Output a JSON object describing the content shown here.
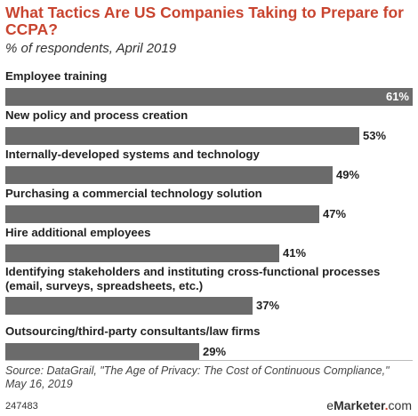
{
  "header": {
    "title": "What Tactics Are US Companies Taking to Prepare for CCPA?",
    "subtitle": "% of respondents, April 2019"
  },
  "chart_data": {
    "type": "bar",
    "orientation": "horizontal",
    "categories": [
      "Employee training",
      "New policy and process creation",
      "Internally-developed systems and technology",
      "Purchasing a commercial technology solution",
      "Hire additional employees",
      "Identifying stakeholders and instituting cross-functional processes (email, surveys, spreadsheets, etc.)",
      "Outsourcing/third-party consultants/law firms"
    ],
    "values": [
      61,
      53,
      49,
      47,
      41,
      37,
      29
    ],
    "value_labels": [
      "61%",
      "53%",
      "49%",
      "47%",
      "41%",
      "37%",
      "29%"
    ],
    "xlim": [
      0,
      61
    ],
    "bar_color": "#6b6b6b",
    "grid": false
  },
  "footer": {
    "source": "Source: DataGrail, \"The Age of Privacy: The Cost of Continuous Compliance,\" May 16, 2019",
    "chart_id": "247483",
    "brand_e": "e",
    "brand_mark": "Marketer",
    "brand_dot": ".",
    "brand_com": "com"
  }
}
